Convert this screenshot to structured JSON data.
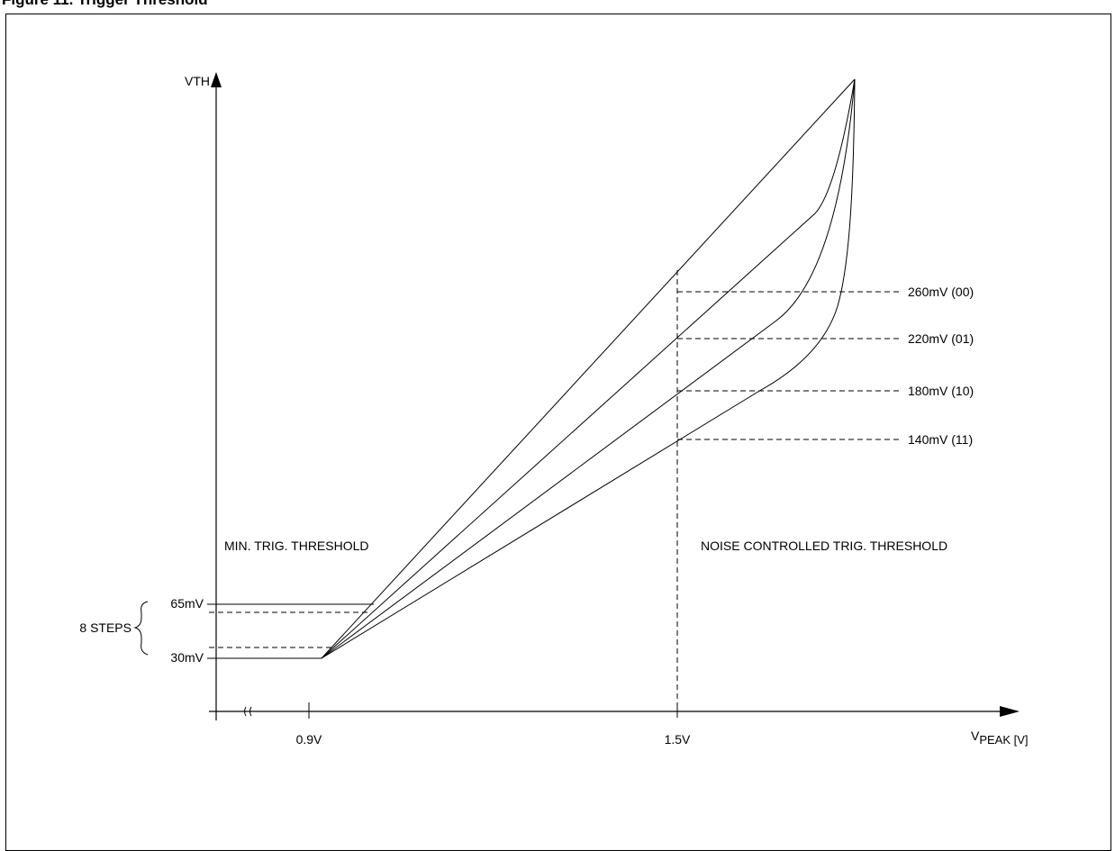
{
  "header": {
    "caption": "Figure 11. Trigger Threshold"
  },
  "axes": {
    "y_label": "VTH",
    "x_label_main": "V",
    "x_label_sub": "PEAK [V]"
  },
  "ticks": {
    "x": [
      "0.9V",
      "1.5V"
    ],
    "y": [
      "65mV",
      "30mV"
    ]
  },
  "steps_label": "8 STEPS",
  "regions": {
    "min": "MIN. TRIG. THRESHOLD",
    "noise": "NOISE CONTROLLED TRIG. THRESHOLD"
  },
  "curve_labels": [
    "260mV (00)",
    "220mV (01)",
    "180mV (10)",
    "140mV (11)"
  ]
}
